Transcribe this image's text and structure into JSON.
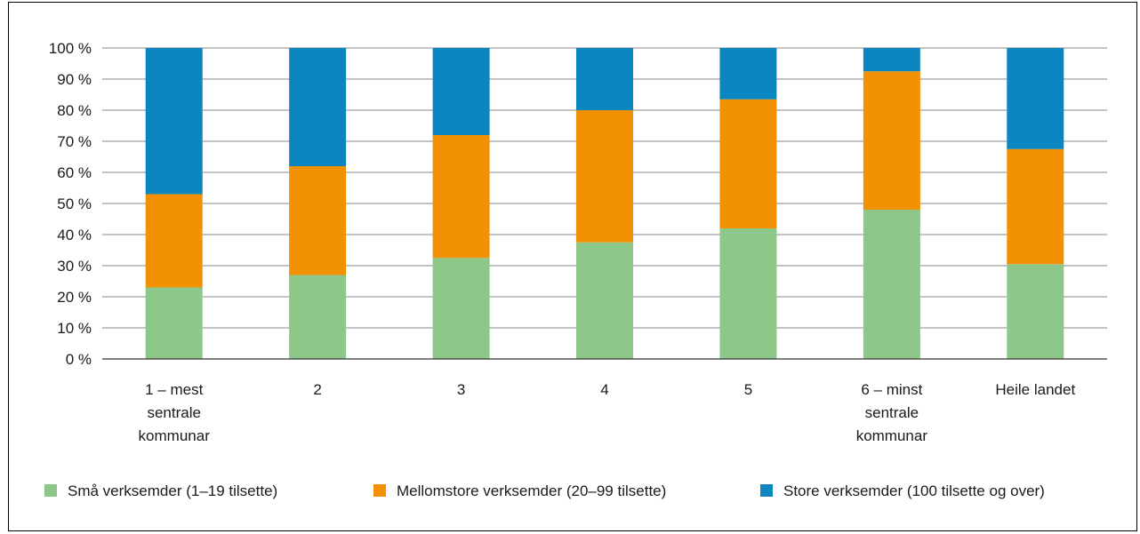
{
  "chart_data": {
    "type": "bar",
    "stacked": true,
    "categories": [
      [
        "1 – mest",
        "sentrale",
        "kommunar"
      ],
      [
        "2"
      ],
      [
        "3"
      ],
      [
        "4"
      ],
      [
        "5"
      ],
      [
        "6 – minst",
        "sentrale",
        "kommunar"
      ],
      [
        "Heile landet"
      ]
    ],
    "series": [
      {
        "name": "Små verksemder (1–19 tilsette)",
        "color": "#8dc78a",
        "values": [
          23,
          27,
          32.5,
          37.5,
          42,
          48,
          30.5
        ]
      },
      {
        "name": "Mellomstore verksemder (20–99 tilsette)",
        "color": "#f39104",
        "values": [
          30,
          35,
          39.5,
          42.5,
          41.5,
          44.5,
          37
        ]
      },
      {
        "name": "Store verksemder (100 tilsette og over)",
        "color": "#0b86c1",
        "values": [
          47,
          38,
          28,
          20,
          16.5,
          7.5,
          32.5
        ]
      }
    ],
    "yticks": [
      "0 %",
      "10 %",
      "20 %",
      "30 %",
      "40 %",
      "50 %",
      "60 %",
      "70 %",
      "80 %",
      "90 %",
      "100 %"
    ],
    "ylim": [
      0,
      100
    ],
    "grid": true,
    "legend_position": "bottom"
  }
}
